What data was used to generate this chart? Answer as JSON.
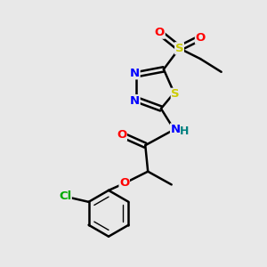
{
  "background_color": "#e8e8e8",
  "bond_color": "#000000",
  "atom_colors": {
    "N": "#0000ff",
    "O": "#ff0000",
    "S_ring": "#cccc00",
    "S_sulfonyl": "#cccc00",
    "Cl": "#00aa00",
    "NH": "#0000ff",
    "H": "#008080"
  },
  "font_size": 9.5
}
